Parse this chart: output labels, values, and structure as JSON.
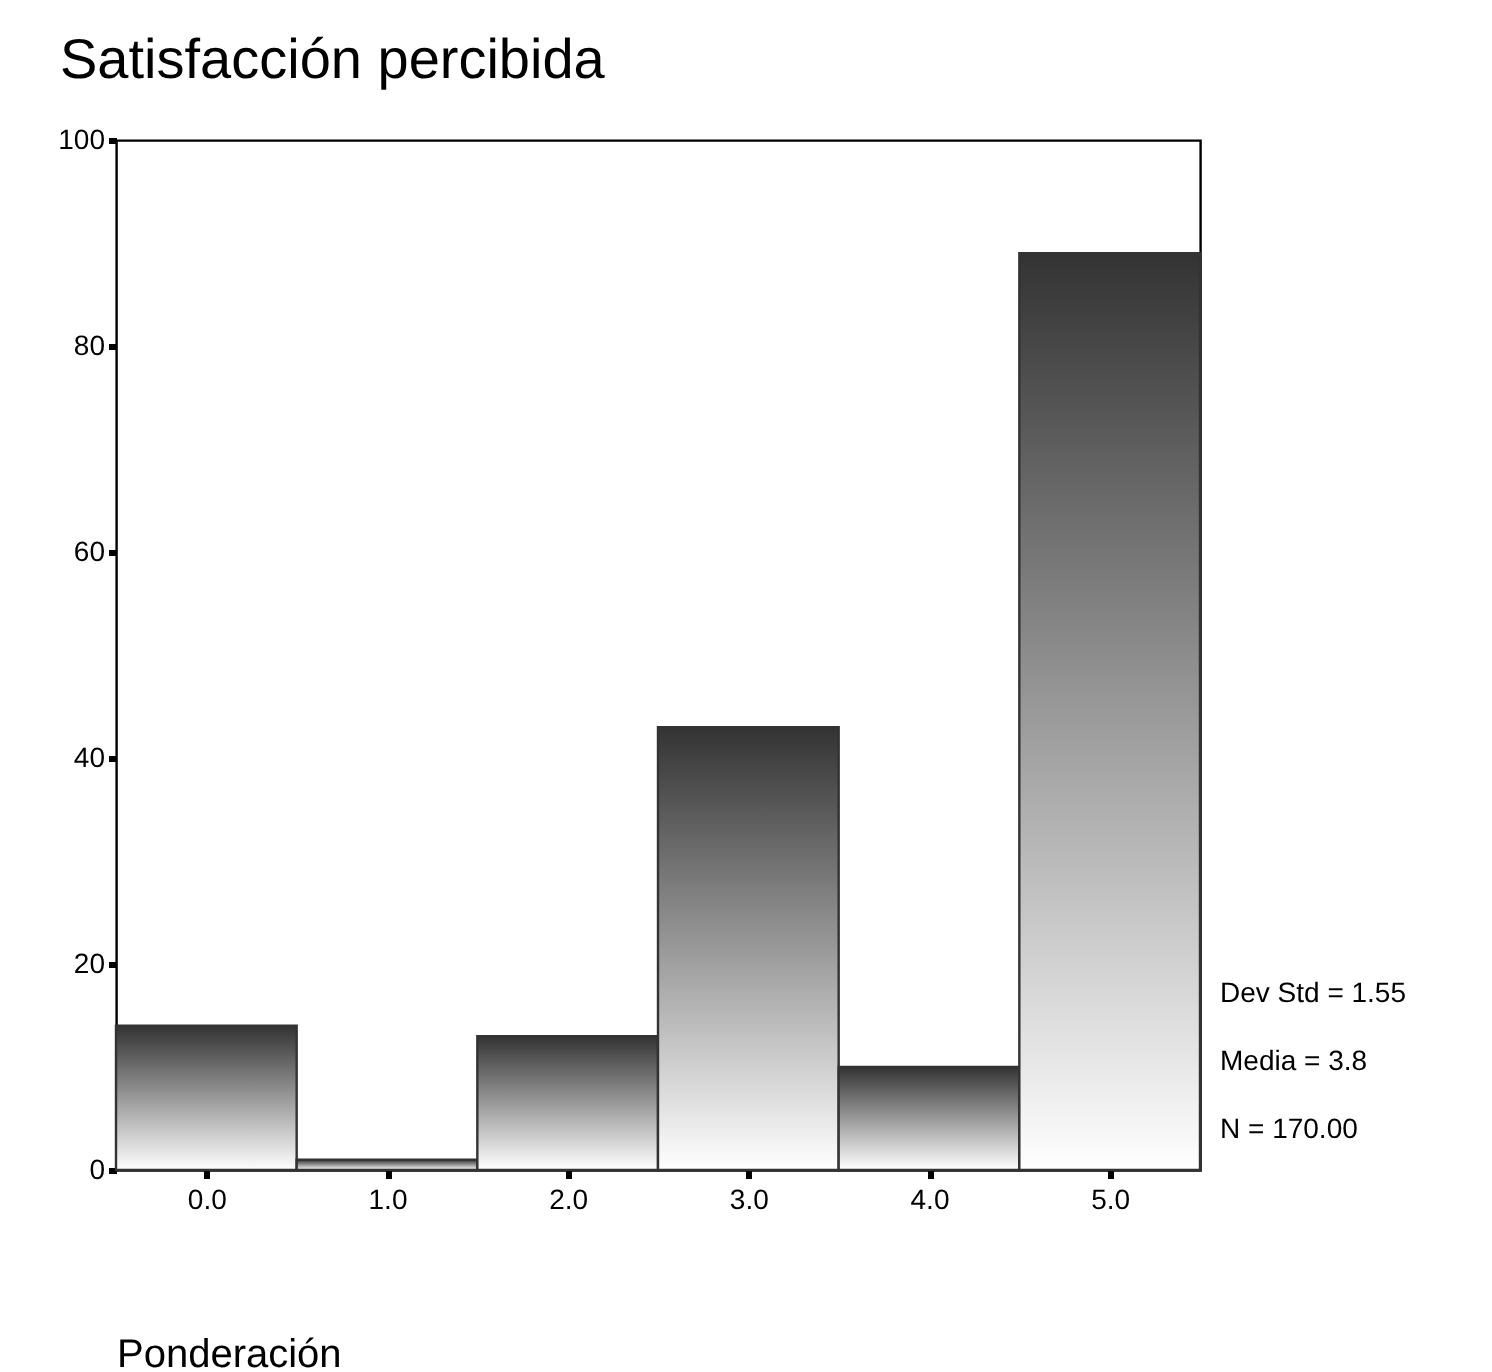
{
  "chart_data": {
    "type": "histogram",
    "title": "Satisfacción percibida",
    "xlabel": "Ponderación",
    "bins": [
      -0.5,
      0.5,
      1.5,
      2.5,
      3.5,
      4.5,
      5.5
    ],
    "values": [
      14,
      1,
      13,
      43,
      10,
      89
    ],
    "color": "#333333",
    "xlim": [
      -0.5,
      5.5
    ],
    "xticks": [
      {
        "value": 0,
        "label": "0.0"
      },
      {
        "value": 1,
        "label": "1.0"
      },
      {
        "value": 2,
        "label": "2.0"
      },
      {
        "value": 3,
        "label": "3.0"
      },
      {
        "value": 4,
        "label": "4.0"
      },
      {
        "value": 5,
        "label": "5.0"
      }
    ],
    "ylim": [
      0,
      100
    ],
    "yticks": [
      0,
      20,
      40,
      60,
      80,
      100
    ],
    "grid": false,
    "annotations": [
      "Dev Std = 1.55",
      "Media = 3.8",
      "N = 170.00"
    ]
  }
}
